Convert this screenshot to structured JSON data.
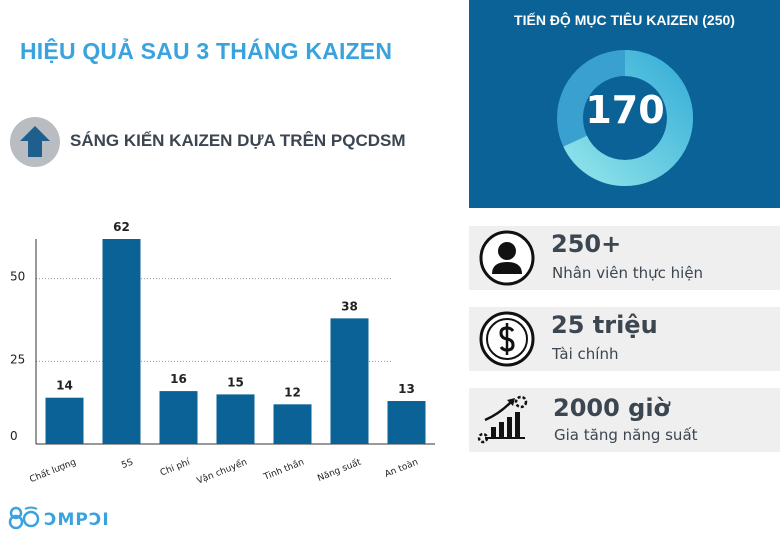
{
  "header": {
    "title": "HIỆU QUẢ SAU 3 THÁNG KAIZEN",
    "subtitle": "SÁNG KIẾN KAIZEN DỰA TRÊN PQCDSM",
    "subtitle_icon": "arrow-up-icon"
  },
  "target_panel": {
    "title": "TIẾN ĐỘ MỤC TIÊU KAIZEN (250)",
    "value": "170",
    "progress_fraction": 0.68
  },
  "cards": [
    {
      "value": "250+",
      "label": "Nhân viên thực hiện",
      "icon": "person-icon"
    },
    {
      "value": "25 triệu",
      "label": "Tài chính",
      "icon": "dollar-icon"
    },
    {
      "value": "2000 giờ",
      "label": "Gia tăng năng suất",
      "icon": "growth-chart-icon"
    }
  ],
  "logo": {
    "text": "ƆMPƆI"
  },
  "colors": {
    "title": "#3aa3dd",
    "panel": "#0b6296",
    "bar": "#0b6296",
    "donut_light": "#8fe3ea",
    "donut_dark": "#3ab0d8",
    "card_bg": "#efefef"
  },
  "chart_data": {
    "type": "bar",
    "categories": [
      "Chất lượng",
      "5S",
      "Chi phí",
      "Vận chuyển",
      "Tinh thần",
      "Năng suất",
      "An toàn"
    ],
    "values": [
      14,
      62,
      16,
      15,
      12,
      38,
      13
    ],
    "y_ticks": [
      0,
      25,
      50
    ],
    "ylim": [
      0,
      62
    ],
    "grid": true,
    "xlabel": "",
    "ylabel": ""
  }
}
